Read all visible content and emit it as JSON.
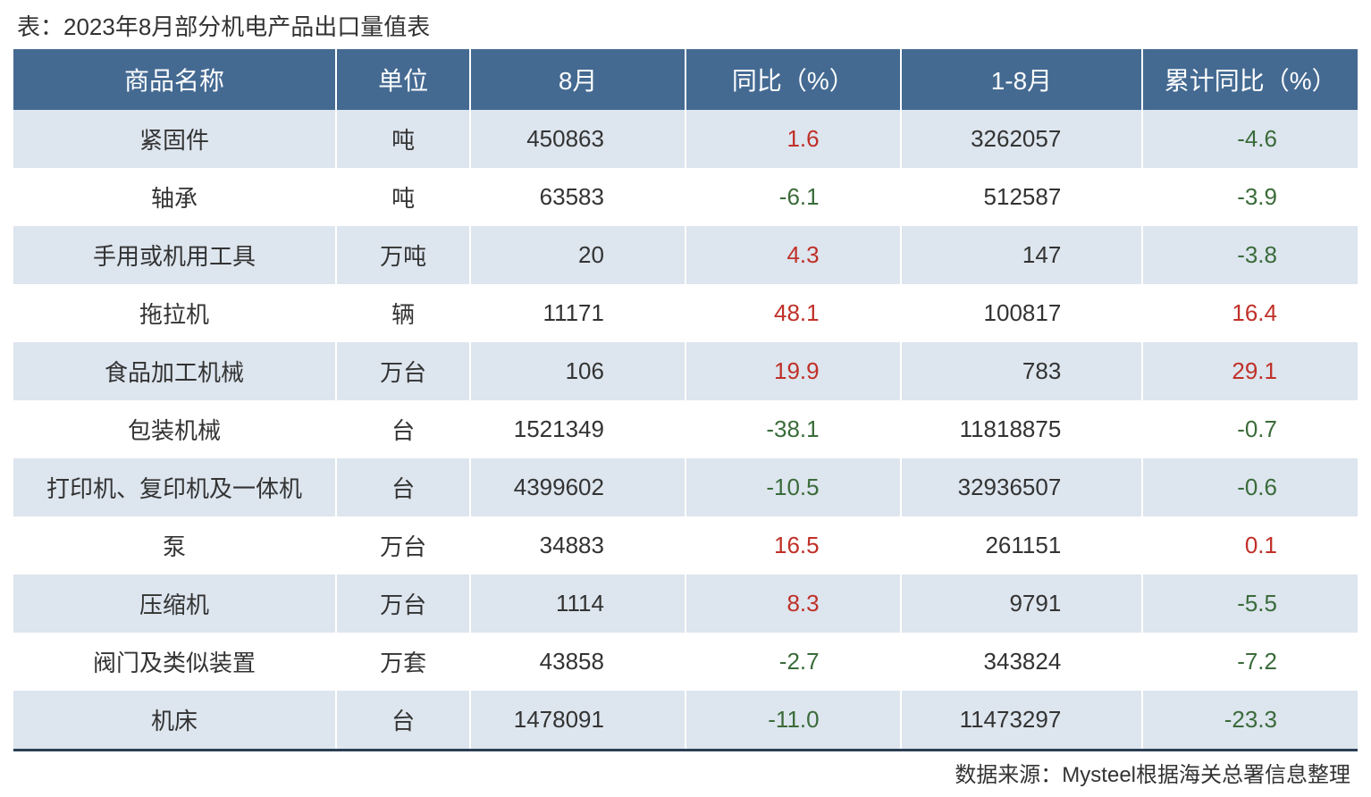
{
  "title": "表：2023年8月部分机电产品出口量值表",
  "source": "数据来源：Mysteel根据海关总署信息整理",
  "table": {
    "header_bg": "#446a92",
    "header_fg": "#ffffff",
    "row_odd_bg": "#dde5ee",
    "row_even_bg": "#ffffff",
    "border_bottom_color": "#2b3e54",
    "positive_color": "#c03028",
    "negative_color": "#3a6b3a",
    "text_color": "#333333",
    "font_size_header": 28,
    "font_size_body": 26,
    "columns": [
      {
        "key": "name",
        "label": "商品名称",
        "align": "center",
        "width": "24%"
      },
      {
        "key": "unit",
        "label": "单位",
        "align": "center",
        "width": "10%"
      },
      {
        "key": "aug",
        "label": "8月",
        "align": "right",
        "width": "16%"
      },
      {
        "key": "yoy",
        "label": "同比（%）",
        "align": "right",
        "width": "16%",
        "signed": true
      },
      {
        "key": "ytd",
        "label": "1-8月",
        "align": "right",
        "width": "18%"
      },
      {
        "key": "cyoy",
        "label": "累计同比（%）",
        "align": "right",
        "width": "16%",
        "signed": true
      }
    ],
    "rows": [
      {
        "name": "紧固件",
        "unit": "吨",
        "aug": "450863",
        "yoy": "1.6",
        "ytd": "3262057",
        "cyoy": "-4.6"
      },
      {
        "name": "轴承",
        "unit": "吨",
        "aug": "63583",
        "yoy": "-6.1",
        "ytd": "512587",
        "cyoy": "-3.9"
      },
      {
        "name": "手用或机用工具",
        "unit": "万吨",
        "aug": "20",
        "yoy": "4.3",
        "ytd": "147",
        "cyoy": "-3.8"
      },
      {
        "name": "拖拉机",
        "unit": "辆",
        "aug": "11171",
        "yoy": "48.1",
        "ytd": "100817",
        "cyoy": "16.4"
      },
      {
        "name": "食品加工机械",
        "unit": "万台",
        "aug": "106",
        "yoy": "19.9",
        "ytd": "783",
        "cyoy": "29.1"
      },
      {
        "name": "包装机械",
        "unit": "台",
        "aug": "1521349",
        "yoy": "-38.1",
        "ytd": "11818875",
        "cyoy": "-0.7"
      },
      {
        "name": "打印机、复印机及一体机",
        "unit": "台",
        "aug": "4399602",
        "yoy": "-10.5",
        "ytd": "32936507",
        "cyoy": "-0.6"
      },
      {
        "name": "泵",
        "unit": "万台",
        "aug": "34883",
        "yoy": "16.5",
        "ytd": "261151",
        "cyoy": "0.1"
      },
      {
        "name": "压缩机",
        "unit": "万台",
        "aug": "1114",
        "yoy": "8.3",
        "ytd": "9791",
        "cyoy": "-5.5"
      },
      {
        "name": "阀门及类似装置",
        "unit": "万套",
        "aug": "43858",
        "yoy": "-2.7",
        "ytd": "343824",
        "cyoy": "-7.2"
      },
      {
        "name": "机床",
        "unit": "台",
        "aug": "1478091",
        "yoy": "-11.0",
        "ytd": "11473297",
        "cyoy": "-23.3"
      }
    ]
  }
}
